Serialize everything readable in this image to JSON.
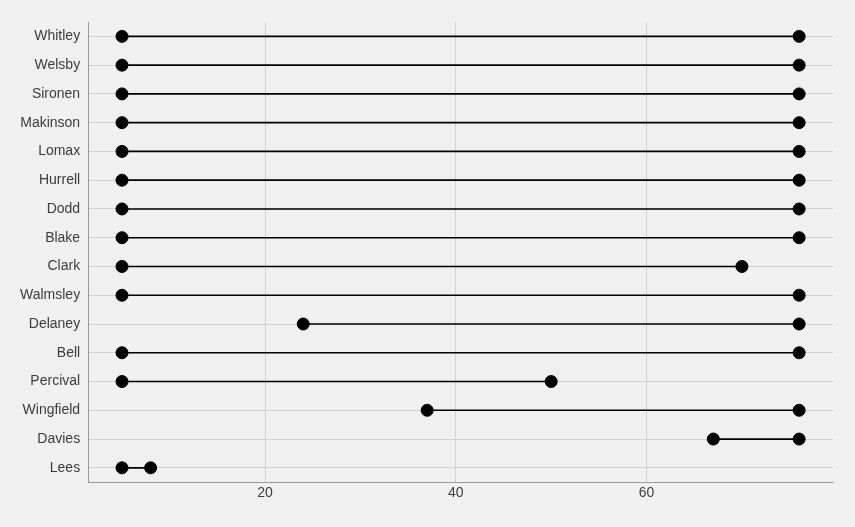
{
  "chart_data": {
    "type": "dumbbell",
    "orientation": "horizontal",
    "categories": [
      "Whitley",
      "Welsby",
      "Sironen",
      "Makinson",
      "Lomax",
      "Hurrell",
      "Dodd",
      "Blake",
      "Clark",
      "Walmsley",
      "Delaney",
      "Bell",
      "Percival",
      "Wingfield",
      "Davies",
      "Lees"
    ],
    "values": [
      [
        5,
        76
      ],
      [
        5,
        76
      ],
      [
        5,
        76
      ],
      [
        5,
        76
      ],
      [
        5,
        76
      ],
      [
        5,
        76
      ],
      [
        5,
        76
      ],
      [
        5,
        76
      ],
      [
        5,
        70
      ],
      [
        5,
        76
      ],
      [
        24,
        76
      ],
      [
        5,
        76
      ],
      [
        5,
        50
      ],
      [
        37,
        76
      ],
      [
        67,
        76
      ],
      [
        5,
        8
      ]
    ],
    "color": "#000000",
    "xlim": [
      1.45,
      79.55
    ],
    "xticks": [
      20,
      40,
      60
    ],
    "grid": true
  }
}
